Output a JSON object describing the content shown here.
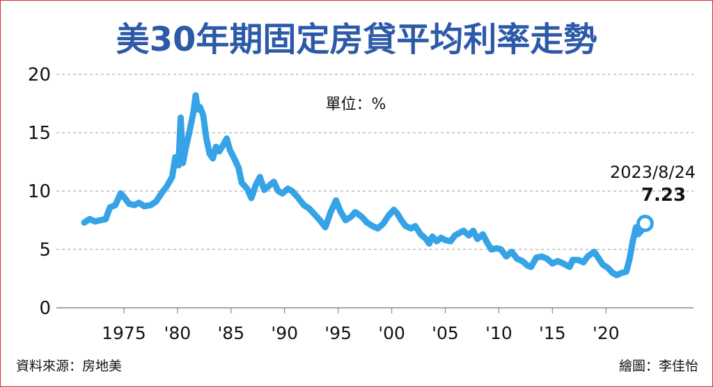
{
  "chart_data": {
    "type": "line",
    "title": "美30年期固定房貸平均利率走勢",
    "unit_label": "單位：%",
    "ylim": [
      0,
      20
    ],
    "y_ticks": [
      0,
      5,
      10,
      15,
      20
    ],
    "x_range": [
      1971.3,
      2024.4
    ],
    "x_ticks": [
      {
        "value": 1975,
        "label": "1975"
      },
      {
        "value": 1980,
        "label": "'80"
      },
      {
        "value": 1985,
        "label": "'85"
      },
      {
        "value": 1990,
        "label": "'90"
      },
      {
        "value": 1995,
        "label": "'95"
      },
      {
        "value": 2000,
        "label": "'00"
      },
      {
        "value": 2005,
        "label": "'05"
      },
      {
        "value": 2010,
        "label": "'10"
      },
      {
        "value": 2015,
        "label": "'15"
      },
      {
        "value": 2020,
        "label": "'20"
      }
    ],
    "grid": "horizontal dashed",
    "series": [
      {
        "color": "#35a3e6",
        "points": [
          [
            1971.3,
            7.3
          ],
          [
            1971.8,
            7.6
          ],
          [
            1972.3,
            7.4
          ],
          [
            1972.8,
            7.5
          ],
          [
            1973.3,
            7.6
          ],
          [
            1973.7,
            8.6
          ],
          [
            1974.2,
            8.8
          ],
          [
            1974.7,
            9.8
          ],
          [
            1975.0,
            9.5
          ],
          [
            1975.5,
            8.9
          ],
          [
            1976.0,
            8.8
          ],
          [
            1976.4,
            9.0
          ],
          [
            1976.9,
            8.7
          ],
          [
            1977.5,
            8.8
          ],
          [
            1978.0,
            9.1
          ],
          [
            1978.5,
            9.8
          ],
          [
            1979.0,
            10.4
          ],
          [
            1979.5,
            11.2
          ],
          [
            1979.8,
            12.9
          ],
          [
            1980.1,
            12.2
          ],
          [
            1980.3,
            16.3
          ],
          [
            1980.5,
            12.4
          ],
          [
            1980.8,
            13.8
          ],
          [
            1981.1,
            15.0
          ],
          [
            1981.5,
            16.8
          ],
          [
            1981.7,
            18.2
          ],
          [
            1981.9,
            17.0
          ],
          [
            1982.1,
            17.2
          ],
          [
            1982.4,
            16.5
          ],
          [
            1982.7,
            14.5
          ],
          [
            1983.0,
            13.2
          ],
          [
            1983.3,
            12.8
          ],
          [
            1983.6,
            13.8
          ],
          [
            1983.9,
            13.4
          ],
          [
            1984.3,
            14.0
          ],
          [
            1984.6,
            14.5
          ],
          [
            1984.9,
            13.5
          ],
          [
            1985.3,
            12.8
          ],
          [
            1985.7,
            12.0
          ],
          [
            1986.0,
            10.7
          ],
          [
            1986.5,
            10.2
          ],
          [
            1986.9,
            9.4
          ],
          [
            1987.3,
            10.5
          ],
          [
            1987.7,
            11.2
          ],
          [
            1988.1,
            10.1
          ],
          [
            1988.6,
            10.5
          ],
          [
            1989.0,
            10.8
          ],
          [
            1989.4,
            10.0
          ],
          [
            1989.8,
            9.8
          ],
          [
            1990.3,
            10.2
          ],
          [
            1990.7,
            10.0
          ],
          [
            1991.2,
            9.5
          ],
          [
            1991.8,
            8.8
          ],
          [
            1992.3,
            8.5
          ],
          [
            1992.8,
            8.0
          ],
          [
            1993.3,
            7.5
          ],
          [
            1993.8,
            6.9
          ],
          [
            1994.3,
            8.2
          ],
          [
            1994.8,
            9.2
          ],
          [
            1995.2,
            8.3
          ],
          [
            1995.7,
            7.5
          ],
          [
            1996.2,
            7.8
          ],
          [
            1996.6,
            8.2
          ],
          [
            1997.2,
            7.8
          ],
          [
            1997.7,
            7.3
          ],
          [
            1998.2,
            7.0
          ],
          [
            1998.7,
            6.8
          ],
          [
            1999.2,
            7.2
          ],
          [
            1999.7,
            7.9
          ],
          [
            2000.2,
            8.4
          ],
          [
            2000.5,
            8.1
          ],
          [
            2000.9,
            7.5
          ],
          [
            2001.3,
            7.0
          ],
          [
            2001.8,
            6.8
          ],
          [
            2002.2,
            7.0
          ],
          [
            2002.7,
            6.3
          ],
          [
            2003.2,
            5.9
          ],
          [
            2003.5,
            5.5
          ],
          [
            2003.8,
            6.1
          ],
          [
            2004.2,
            5.7
          ],
          [
            2004.6,
            6.0
          ],
          [
            2005.0,
            5.8
          ],
          [
            2005.5,
            5.7
          ],
          [
            2005.9,
            6.2
          ],
          [
            2006.3,
            6.4
          ],
          [
            2006.7,
            6.6
          ],
          [
            2007.2,
            6.2
          ],
          [
            2007.6,
            6.6
          ],
          [
            2008.0,
            5.9
          ],
          [
            2008.5,
            6.3
          ],
          [
            2008.9,
            5.6
          ],
          [
            2009.3,
            5.0
          ],
          [
            2009.8,
            5.1
          ],
          [
            2010.2,
            5.0
          ],
          [
            2010.7,
            4.4
          ],
          [
            2011.2,
            4.8
          ],
          [
            2011.7,
            4.2
          ],
          [
            2012.2,
            4.0
          ],
          [
            2012.7,
            3.6
          ],
          [
            2013.0,
            3.5
          ],
          [
            2013.5,
            4.3
          ],
          [
            2014.0,
            4.4
          ],
          [
            2014.5,
            4.2
          ],
          [
            2015.0,
            3.8
          ],
          [
            2015.5,
            4.0
          ],
          [
            2016.0,
            3.8
          ],
          [
            2016.6,
            3.5
          ],
          [
            2016.9,
            4.1
          ],
          [
            2017.4,
            4.1
          ],
          [
            2017.9,
            3.9
          ],
          [
            2018.3,
            4.4
          ],
          [
            2018.9,
            4.8
          ],
          [
            2019.2,
            4.4
          ],
          [
            2019.7,
            3.7
          ],
          [
            2020.2,
            3.4
          ],
          [
            2020.6,
            3.0
          ],
          [
            2021.0,
            2.8
          ],
          [
            2021.5,
            3.0
          ],
          [
            2021.9,
            3.1
          ],
          [
            2022.2,
            4.2
          ],
          [
            2022.5,
            5.7
          ],
          [
            2022.8,
            6.9
          ],
          [
            2023.0,
            6.3
          ],
          [
            2023.3,
            6.6
          ],
          [
            2023.65,
            7.23
          ]
        ]
      }
    ],
    "annotation": {
      "date": "2023/8/24",
      "value": "7.23",
      "x": 2023.65,
      "y": 7.23
    }
  },
  "footer": {
    "source": "資料來源：房地美",
    "credit": "繪圖：李佳怡"
  }
}
